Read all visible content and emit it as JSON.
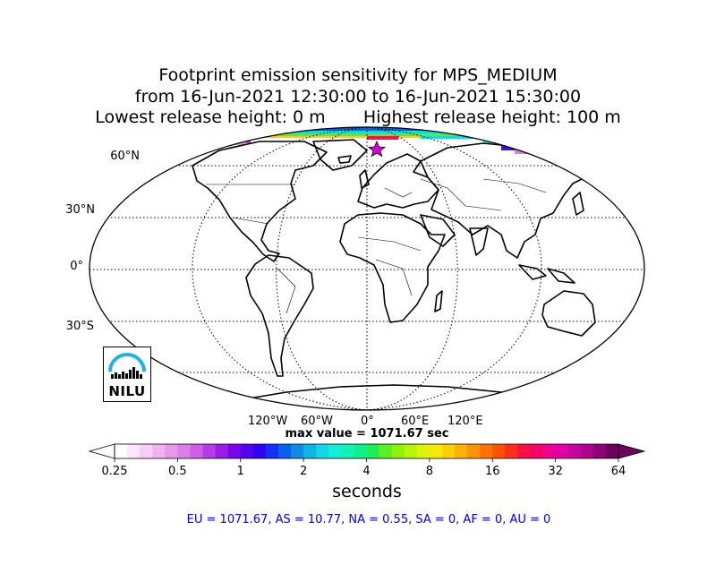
{
  "title": {
    "line1": "Footprint emission sensitivity for MPS_MEDIUM",
    "line2": "from 16-Jun-2021 12:30:00 to 16-Jun-2021 15:30:00",
    "line3": "Lowest release height: 0 m       Highest release height: 100 m"
  },
  "map": {
    "projection": "Robinson",
    "lat_labels": [
      "60°N",
      "30°N",
      "0°",
      "30°S"
    ],
    "lon_labels": [
      "120°W",
      "60°W",
      "0°",
      "60°E",
      "120°E"
    ],
    "release_marker": "star-icon"
  },
  "max_value_text": "max value = 1071.67 sec",
  "colorbar": {
    "tick_labels": [
      "0.25",
      "0.5",
      "1",
      "2",
      "4",
      "8",
      "16",
      "32",
      "64"
    ],
    "unit_label": "seconds",
    "colors": [
      "#ffffff",
      "#fde6fb",
      "#f7cdf5",
      "#f0b3ee",
      "#e897ea",
      "#dd7ee8",
      "#cc5ee8",
      "#b63ae8",
      "#9d1de8",
      "#7c05ec",
      "#5500f2",
      "#3000f7",
      "#1230f7",
      "#0b5ff0",
      "#0d8be8",
      "#0eb6e6",
      "#10d8e4",
      "#12eed8",
      "#10f2b8",
      "#0ef08a",
      "#20ec55",
      "#5aee24",
      "#8cf208",
      "#b6f400",
      "#ddf400",
      "#f5ea00",
      "#ffcf00",
      "#ffb000",
      "#ff9300",
      "#ff7300",
      "#ff5200",
      "#ff2e1a",
      "#ff1044",
      "#f8006a",
      "#ef0090",
      "#e000a8",
      "#c800a2",
      "#ae008d",
      "#900075",
      "#6e005d"
    ]
  },
  "regions_text": "EU = 1071.67,  AS = 10.77,  NA = 0.55,  SA = 0,  AF = 0,  AU = 0",
  "logo": {
    "text": "NILU"
  }
}
